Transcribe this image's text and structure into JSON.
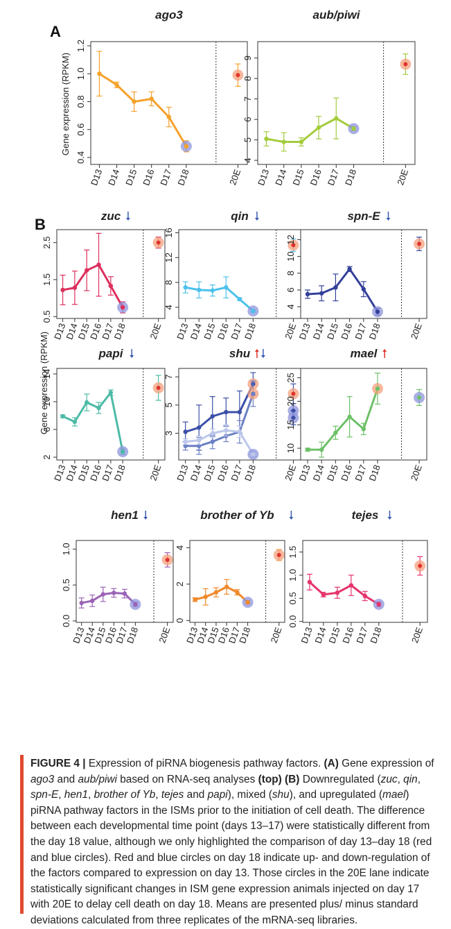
{
  "figure": {
    "y_axis_label": "Gene expression (RPKM)",
    "panel_letters": [
      "A",
      "B"
    ],
    "arrow_colors": {
      "down": "#3b5bb0",
      "up": "#e0342c"
    },
    "circle_colors": {
      "down": "#8e94dc",
      "up": "#f4a07e"
    }
  },
  "chart_data": [
    {
      "type": "line",
      "panel": "A",
      "title": "ago3",
      "color": "#f5a12a",
      "categories": [
        "D13",
        "D14",
        "D15",
        "D16",
        "D17",
        "D18"
      ],
      "extra_category": "20E",
      "series": [
        {
          "values": [
            1.0,
            0.92,
            0.8,
            0.82,
            0.69,
            0.48
          ],
          "errors": [
            0.16,
            0.02,
            0.07,
            0.05,
            0.07,
            0.04
          ],
          "circle": "down"
        }
      ],
      "extra": [
        {
          "value": 0.99,
          "error": 0.08,
          "circle": "up"
        }
      ],
      "ylim": [
        0.35,
        1.23
      ],
      "yticks": [
        "0.4",
        "0.6",
        "0.8",
        "1.0",
        "1.2"
      ],
      "arrows": []
    },
    {
      "type": "line",
      "panel": "A",
      "title": "aub/piwi",
      "color": "#a3cc3b",
      "categories": [
        "D13",
        "D14",
        "D15",
        "D16",
        "D17",
        "D18"
      ],
      "extra_category": "20E",
      "series": [
        {
          "values": [
            5.05,
            4.9,
            4.9,
            5.6,
            6.05,
            5.55
          ],
          "errors": [
            0.35,
            0.45,
            0.2,
            0.55,
            1.0,
            0.1
          ],
          "circle": "down"
        }
      ],
      "extra": [
        {
          "value": 8.7,
          "error": 0.5,
          "circle": "up"
        }
      ],
      "ylim": [
        3.8,
        9.8
      ],
      "yticks": [
        "4",
        "5",
        "6",
        "7",
        "8",
        "9"
      ],
      "arrows": []
    },
    {
      "type": "line",
      "panel": "B",
      "title": "zuc",
      "color": "#dd2f5c",
      "categories": [
        "D13",
        "D14",
        "D15",
        "D16",
        "D17",
        "D18"
      ],
      "extra_category": "20E",
      "series": [
        {
          "values": [
            1.22,
            1.28,
            1.75,
            1.9,
            1.33,
            0.75
          ],
          "errors": [
            0.4,
            0.45,
            0.55,
            0.85,
            0.25,
            0.15
          ],
          "circle": "down"
        }
      ],
      "extra": [
        {
          "value": 2.5,
          "error": 0.15,
          "circle": "up"
        }
      ],
      "ylim": [
        0.45,
        2.85
      ],
      "yticks": [
        "0.5",
        "1.5",
        "2.5"
      ],
      "arrows": [
        "down"
      ]
    },
    {
      "type": "line",
      "panel": "B",
      "title": "qin",
      "color": "#4cc1ec",
      "categories": [
        "D13",
        "D14",
        "D15",
        "D16",
        "D17",
        "D18"
      ],
      "extra_category": "20E",
      "series": [
        {
          "values": [
            7.2,
            6.8,
            6.7,
            7.2,
            5.3,
            3.4
          ],
          "errors": [
            0.9,
            1.3,
            0.9,
            1.7,
            0.2,
            0.2
          ],
          "circle": "down"
        }
      ],
      "extra": [
        {
          "value": 14.0,
          "error": 1.0,
          "circle": "up"
        }
      ],
      "ylim": [
        2.2,
        16.5
      ],
      "yticks": [
        "4",
        "8",
        "12",
        "16"
      ],
      "arrows": [
        "down"
      ]
    },
    {
      "type": "line",
      "panel": "B",
      "title": "spn-E",
      "color": "#33409a",
      "categories": [
        "D13",
        "D14",
        "D15",
        "D16",
        "D17",
        "D18"
      ],
      "extra_category": "20E",
      "series": [
        {
          "values": [
            5.5,
            5.6,
            6.3,
            8.5,
            6.1,
            3.4
          ],
          "errors": [
            0.5,
            0.9,
            1.6,
            0.3,
            0.9,
            0.4
          ],
          "circle": "down"
        }
      ],
      "extra": [
        {
          "value": 11.5,
          "error": 0.8,
          "circle": "up"
        }
      ],
      "ylim": [
        2.6,
        13.2
      ],
      "yticks": [
        "4",
        "6",
        "8",
        "10",
        "12"
      ],
      "arrows": [
        "down"
      ]
    },
    {
      "type": "line",
      "panel": "B",
      "title": "papi",
      "color": "#4cbaa7",
      "categories": [
        "D13",
        "D14",
        "D15",
        "D16",
        "D17",
        "D18"
      ],
      "extra_category": "20E",
      "series": [
        {
          "values": [
            7.9,
            7.1,
            9.9,
            9.1,
            11.3,
            2.8
          ],
          "errors": [
            0.2,
            0.6,
            1.2,
            0.8,
            0.4,
            0.4
          ],
          "circle": "down"
        }
      ],
      "extra": [
        {
          "value": 12.0,
          "error": 1.8,
          "circle": "up"
        }
      ],
      "ylim": [
        1.6,
        14.8
      ],
      "yticks": [
        "2",
        "6",
        "10",
        "14"
      ],
      "arrows": [
        "down"
      ]
    },
    {
      "type": "line",
      "panel": "B",
      "title": "shu",
      "color": "#3b4fa8",
      "categories": [
        "D13",
        "D14",
        "D15",
        "D16",
        "D17",
        "D18"
      ],
      "extra_category": "20E",
      "series": [
        {
          "values": [
            3.1,
            3.4,
            4.2,
            4.5,
            4.5,
            6.5
          ],
          "errors": [
            0.7,
            1.6,
            1.4,
            1.0,
            1.5,
            0.8
          ],
          "color": "#3b4fa8",
          "circle": "up"
        },
        {
          "values": [
            2.1,
            2.1,
            2.4,
            2.8,
            3.1,
            5.8
          ],
          "errors": [
            0.3,
            0.6,
            0.5,
            0.4,
            0.8,
            0.9
          ],
          "color": "#6a7fc4",
          "circle": "up"
        },
        {
          "values": [
            2.4,
            2.5,
            3.0,
            3.2,
            3.1,
            1.5
          ],
          "errors": [
            0.2,
            0.3,
            0.3,
            0.4,
            0.4,
            0.2
          ],
          "color": "#bcc7ea",
          "circle": "down"
        }
      ],
      "extra": [
        {
          "value": 5.8,
          "error": 0.7,
          "circle": "up"
        },
        {
          "value": 4.6,
          "error": 0.5,
          "circle": "down"
        },
        {
          "value": 4.1,
          "error": 0.5,
          "circle": "down"
        }
      ],
      "ylim": [
        1.1,
        7.6
      ],
      "yticks": [
        "3",
        "5",
        "7"
      ],
      "arrows": [
        "up",
        "down"
      ]
    },
    {
      "type": "line",
      "panel": "B",
      "title": "mael",
      "color": "#6cc167",
      "categories": [
        "D13",
        "D14",
        "D15",
        "D16",
        "D17",
        "D18"
      ],
      "extra_category": "20E",
      "series": [
        {
          "values": [
            9.7,
            9.7,
            13.3,
            16.7,
            14.1,
            22.7
          ],
          "errors": [
            0.3,
            1.6,
            1.4,
            4.3,
            1.2,
            3.3
          ],
          "circle": "up"
        }
      ],
      "extra": [
        {
          "value": 20.8,
          "error": 1.7,
          "circle": "down"
        }
      ],
      "ylim": [
        7.5,
        27.0
      ],
      "yticks": [
        "10",
        "15",
        "20",
        "25"
      ],
      "arrows": [
        "up"
      ]
    },
    {
      "type": "line",
      "panel": "B",
      "title": "hen1",
      "color": "#9b63b6",
      "categories": [
        "D13",
        "D14",
        "D15",
        "D16",
        "D17",
        "D18"
      ],
      "extra_category": "20E",
      "series": [
        {
          "values": [
            0.25,
            0.28,
            0.37,
            0.39,
            0.38,
            0.23
          ],
          "errors": [
            0.07,
            0.08,
            0.1,
            0.06,
            0.06,
            0.03
          ],
          "circle": "down"
        }
      ],
      "extra": [
        {
          "value": 0.85,
          "error": 0.1,
          "circle": "up"
        }
      ],
      "ylim": [
        -0.02,
        1.12
      ],
      "yticks": [
        "0.0",
        "0.5",
        "1.0"
      ],
      "arrows": [
        "down"
      ]
    },
    {
      "type": "line",
      "panel": "B",
      "title": "brother of Yb",
      "color": "#f0892a",
      "categories": [
        "D13",
        "D14",
        "D15",
        "D16",
        "D17",
        "D18"
      ],
      "extra_category": "20E",
      "series": [
        {
          "values": [
            1.15,
            1.3,
            1.55,
            1.85,
            1.55,
            1.0
          ],
          "errors": [
            0.1,
            0.45,
            0.25,
            0.4,
            0.15,
            0.1
          ],
          "circle": "down"
        }
      ],
      "extra": [
        {
          "value": 3.6,
          "error": 0.3,
          "circle": "up"
        }
      ],
      "ylim": [
        -0.1,
        4.4
      ],
      "yticks": [
        "0",
        "2",
        "4"
      ],
      "arrows": [
        "down"
      ]
    },
    {
      "type": "line",
      "panel": "B",
      "title": "tejes",
      "color": "#e6336b",
      "categories": [
        "D13",
        "D14",
        "D15",
        "D16",
        "D17",
        "D18"
      ],
      "extra_category": "20E",
      "series": [
        {
          "values": [
            0.85,
            0.58,
            0.62,
            0.78,
            0.55,
            0.37
          ],
          "errors": [
            0.17,
            0.05,
            0.12,
            0.22,
            0.1,
            0.05
          ],
          "circle": "down"
        }
      ],
      "extra": [
        {
          "value": 1.2,
          "error": 0.2,
          "circle": "up"
        }
      ],
      "ylim": [
        -0.02,
        1.75
      ],
      "yticks": [
        "0.0",
        "0.5",
        "1.0",
        "1.5"
      ],
      "arrows": [
        "down"
      ]
    }
  ],
  "caption": {
    "label": "FIGURE 4 |",
    "s1": " Expression of piRNA biogenesis pathway factors. ",
    "a_label": "(A)",
    "s2": " Gene expression of ",
    "g_ago3": "ago3",
    "s3": " and ",
    "g_aub": "aub/piwi",
    "s4": " based on RNA-seq analyses ",
    "top_label": "(top)",
    "s5": " ",
    "b_label": "(B)",
    "s6": " Downregulated (",
    "g_zuc": "zuc",
    "c1": ", ",
    "g_qin": "qin",
    "c2": ", ",
    "g_spne": "spn-E",
    "c3": ", ",
    "g_hen1": "hen1",
    "c4": ", ",
    "g_boy": "brother of Yb",
    "c5": ", ",
    "g_tejes": "tejes",
    "s7": " and ",
    "g_papi": "papi",
    "s8": "), mixed (",
    "g_shu": "shu",
    "s9": "), and upregulated (",
    "g_mael": "mael",
    "s10": ") piRNA pathway factors in the ISMs prior to the initiation of cell death. The difference between each developmental time point (days 13–17) were statistically different from the day 18 value, although we only highlighted the comparison of day 13–day 18 (red and blue circles). Red and blue circles on day 18 indicate up- and down-regulation of the factors compared to expression on day 13. Those circles in the 20E lane indicate statistically significant changes in ISM gene expression animals injected on day 17 with 20E to delay cell death on day 18. Means are presented plus/ minus standard deviations calculated from three replicates of the mRNA-seq libraries."
  }
}
